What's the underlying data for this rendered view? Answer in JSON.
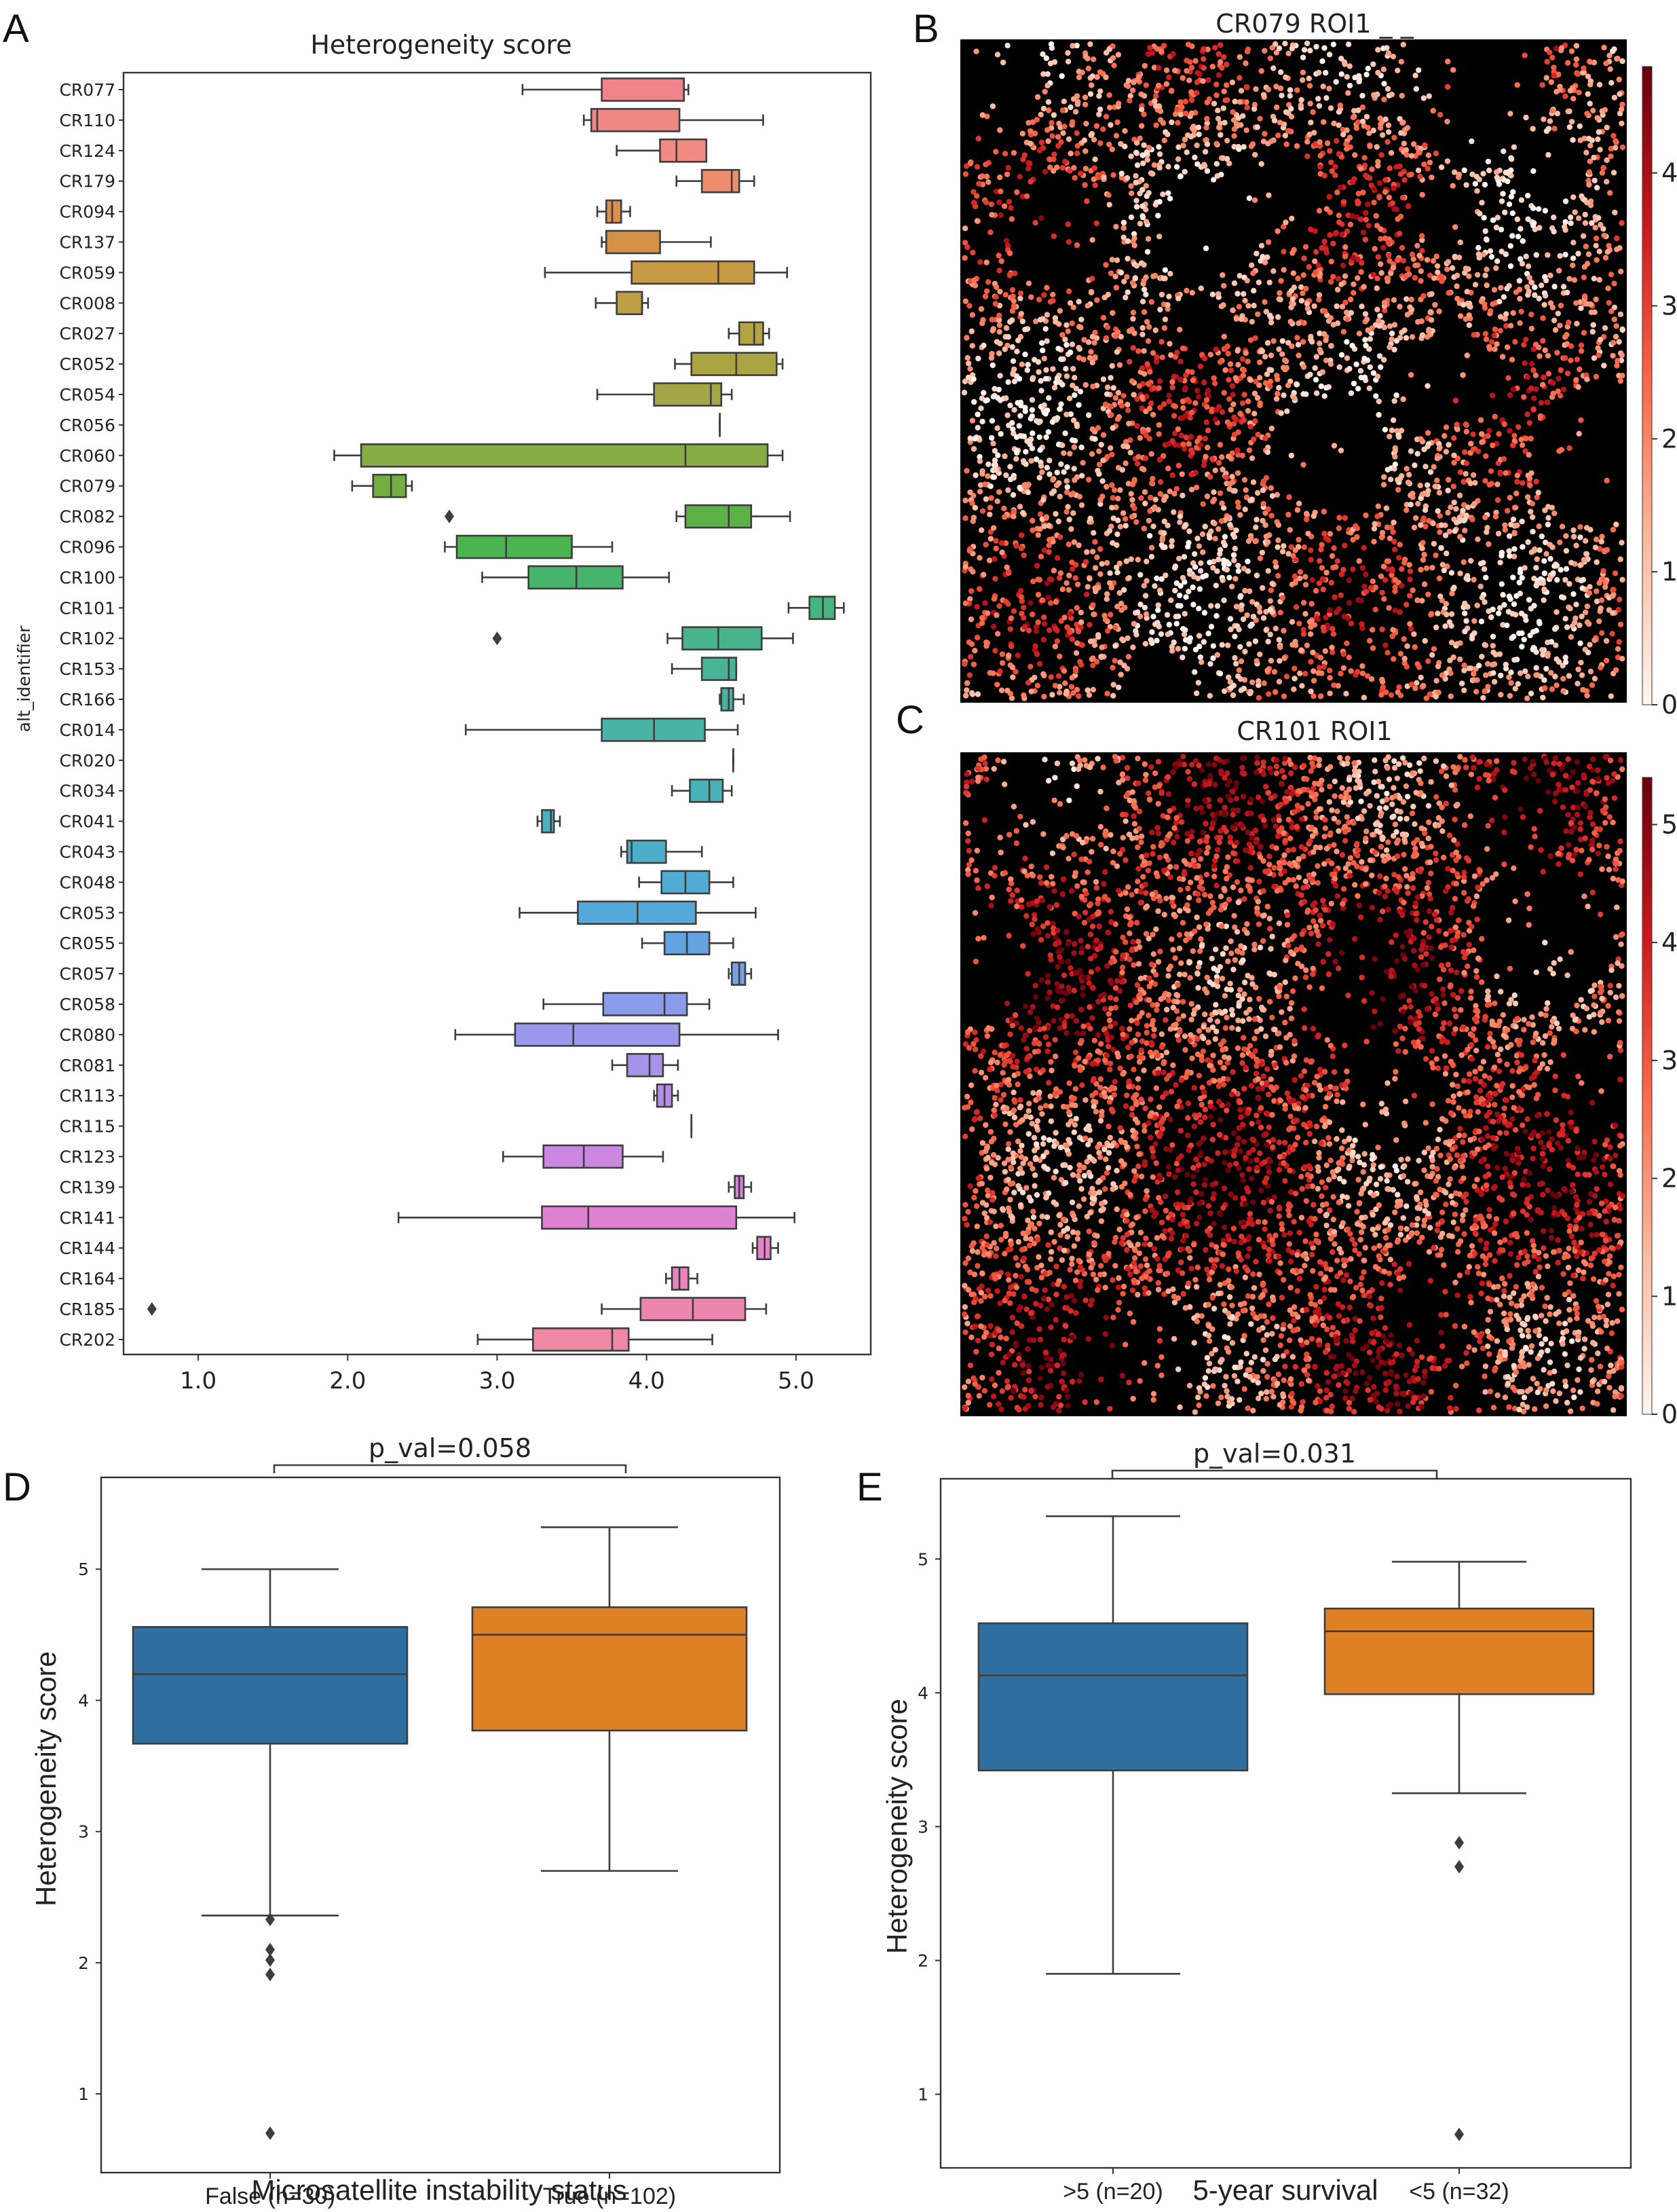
{
  "panels": {
    "A": {
      "letter": "A",
      "chart_data": {
        "type": "box-horizontal",
        "title": "Heterogeneity score",
        "ylabel": "alt_identifier",
        "xlim": [
          0.5,
          5.5
        ],
        "xticks": [
          "1.0",
          "2.0",
          "3.0",
          "4.0",
          "5.0"
        ],
        "xtick_values": [
          1,
          2,
          3,
          4,
          5
        ],
        "boxes": [
          {
            "label": "CR077",
            "color": "#f0848c",
            "min": 3.17,
            "q1": 3.7,
            "median": 4.25,
            "q3": 4.25,
            "max": 4.28,
            "outliers": []
          },
          {
            "label": "CR110",
            "color": "#f08886",
            "min": 3.58,
            "q1": 3.63,
            "median": 3.67,
            "q3": 4.22,
            "max": 4.78,
            "outliers": []
          },
          {
            "label": "CR124",
            "color": "#f08a82",
            "min": 3.8,
            "q1": 4.09,
            "median": 4.2,
            "q3": 4.4,
            "max": 4.4,
            "outliers": []
          },
          {
            "label": "CR179",
            "color": "#ee8c6e",
            "min": 4.2,
            "q1": 4.37,
            "median": 4.57,
            "q3": 4.62,
            "max": 4.72,
            "outliers": []
          },
          {
            "label": "CR094",
            "color": "#dc8f4d",
            "min": 3.67,
            "q1": 3.73,
            "median": 3.77,
            "q3": 3.83,
            "max": 3.89,
            "outliers": []
          },
          {
            "label": "CR137",
            "color": "#d49246",
            "min": 3.7,
            "q1": 3.73,
            "median": 3.73,
            "q3": 4.09,
            "max": 4.43,
            "outliers": []
          },
          {
            "label": "CR059",
            "color": "#c99a44",
            "min": 3.32,
            "q1": 3.9,
            "median": 4.48,
            "q3": 4.72,
            "max": 4.94,
            "outliers": []
          },
          {
            "label": "CR008",
            "color": "#bda043",
            "min": 3.66,
            "q1": 3.8,
            "median": 3.97,
            "q3": 3.97,
            "max": 4.01,
            "outliers": []
          },
          {
            "label": "CR027",
            "color": "#b3a344",
            "min": 4.55,
            "q1": 4.62,
            "median": 4.72,
            "q3": 4.78,
            "max": 4.82,
            "outliers": []
          },
          {
            "label": "CR052",
            "color": "#aca444",
            "min": 4.19,
            "q1": 4.3,
            "median": 4.6,
            "q3": 4.87,
            "max": 4.91,
            "outliers": []
          },
          {
            "label": "CR054",
            "color": "#a3a646",
            "min": 3.67,
            "q1": 4.05,
            "median": 4.43,
            "q3": 4.5,
            "max": 4.57,
            "outliers": []
          },
          {
            "label": "CR056",
            "color": "#9aa847",
            "min": 4.49,
            "q1": 4.49,
            "median": 4.49,
            "q3": 4.49,
            "max": 4.49,
            "outliers": []
          },
          {
            "label": "CR060",
            "color": "#86ac43",
            "min": 1.91,
            "q1": 2.09,
            "median": 4.26,
            "q3": 4.81,
            "max": 4.91,
            "outliers": []
          },
          {
            "label": "CR079",
            "color": "#74ae43",
            "min": 2.03,
            "q1": 2.17,
            "median": 2.29,
            "q3": 2.39,
            "max": 2.43,
            "outliers": []
          },
          {
            "label": "CR082",
            "color": "#5cb246",
            "min": 4.2,
            "q1": 4.26,
            "median": 4.55,
            "q3": 4.7,
            "max": 4.96,
            "outliers": [
              2.68
            ]
          },
          {
            "label": "CR096",
            "color": "#4bb34f",
            "min": 2.65,
            "q1": 2.73,
            "median": 3.06,
            "q3": 3.5,
            "max": 3.77,
            "outliers": []
          },
          {
            "label": "CR100",
            "color": "#48b36a",
            "min": 2.9,
            "q1": 3.21,
            "median": 3.53,
            "q3": 3.84,
            "max": 4.15,
            "outliers": []
          },
          {
            "label": "CR101",
            "color": "#47b47f",
            "min": 4.95,
            "q1": 5.09,
            "median": 5.18,
            "q3": 5.26,
            "max": 5.32,
            "outliers": []
          },
          {
            "label": "CR102",
            "color": "#48b48c",
            "min": 4.14,
            "q1": 4.24,
            "median": 4.48,
            "q3": 4.77,
            "max": 4.98,
            "outliers": [
              3.0
            ]
          },
          {
            "label": "CR153",
            "color": "#48b495",
            "min": 4.17,
            "q1": 4.37,
            "median": 4.55,
            "q3": 4.6,
            "max": 4.6,
            "outliers": []
          },
          {
            "label": "CR166",
            "color": "#48b49e",
            "min": 4.49,
            "q1": 4.5,
            "median": 4.55,
            "q3": 4.58,
            "max": 4.65,
            "outliers": []
          },
          {
            "label": "CR014",
            "color": "#49b3a8",
            "min": 2.79,
            "q1": 3.7,
            "median": 4.05,
            "q3": 4.39,
            "max": 4.61,
            "outliers": []
          },
          {
            "label": "CR020",
            "color": "#4ab3b1",
            "min": 4.58,
            "q1": 4.58,
            "median": 4.58,
            "q3": 4.58,
            "max": 4.58,
            "outliers": []
          },
          {
            "label": "CR034",
            "color": "#49b2b8",
            "min": 4.17,
            "q1": 4.29,
            "median": 4.42,
            "q3": 4.51,
            "max": 4.57,
            "outliers": []
          },
          {
            "label": "CR041",
            "color": "#4bb0c0",
            "min": 3.27,
            "q1": 3.3,
            "median": 3.36,
            "q3": 3.38,
            "max": 3.42,
            "outliers": []
          },
          {
            "label": "CR043",
            "color": "#4daec9",
            "min": 3.83,
            "q1": 3.87,
            "median": 3.9,
            "q3": 4.13,
            "max": 4.37,
            "outliers": []
          },
          {
            "label": "CR048",
            "color": "#50acd2",
            "min": 3.95,
            "q1": 4.1,
            "median": 4.26,
            "q3": 4.42,
            "max": 4.58,
            "outliers": []
          },
          {
            "label": "CR053",
            "color": "#55a8da",
            "min": 3.15,
            "q1": 3.54,
            "median": 3.94,
            "q3": 4.33,
            "max": 4.73,
            "outliers": []
          },
          {
            "label": "CR055",
            "color": "#62a4e0",
            "min": 3.97,
            "q1": 4.12,
            "median": 4.27,
            "q3": 4.42,
            "max": 4.58,
            "outliers": []
          },
          {
            "label": "CR057",
            "color": "#769fe6",
            "min": 4.55,
            "q1": 4.57,
            "median": 4.62,
            "q3": 4.66,
            "max": 4.7,
            "outliers": []
          },
          {
            "label": "CR058",
            "color": "#8a9ce9",
            "min": 3.31,
            "q1": 3.71,
            "median": 4.12,
            "q3": 4.27,
            "max": 4.42,
            "outliers": []
          },
          {
            "label": "CR080",
            "color": "#9b97ec",
            "min": 2.72,
            "q1": 3.12,
            "median": 3.51,
            "q3": 4.22,
            "max": 4.88,
            "outliers": []
          },
          {
            "label": "CR081",
            "color": "#a992ec",
            "min": 3.77,
            "q1": 3.87,
            "median": 4.02,
            "q3": 4.11,
            "max": 4.21,
            "outliers": []
          },
          {
            "label": "CR113",
            "color": "#b58eea",
            "min": 4.05,
            "q1": 4.07,
            "median": 4.12,
            "q3": 4.17,
            "max": 4.21,
            "outliers": []
          },
          {
            "label": "CR115",
            "color": "#c08ae6",
            "min": 4.3,
            "q1": 4.3,
            "median": 4.3,
            "q3": 4.3,
            "max": 4.3,
            "outliers": []
          },
          {
            "label": "CR123",
            "color": "#cb87e2",
            "min": 3.04,
            "q1": 3.31,
            "median": 3.58,
            "q3": 3.84,
            "max": 4.11,
            "outliers": []
          },
          {
            "label": "CR139",
            "color": "#d684dc",
            "min": 4.55,
            "q1": 4.59,
            "median": 4.62,
            "q3": 4.65,
            "max": 4.7,
            "outliers": []
          },
          {
            "label": "CR141",
            "color": "#df82d3",
            "min": 2.34,
            "q1": 3.3,
            "median": 3.61,
            "q3": 4.6,
            "max": 4.99,
            "outliers": []
          },
          {
            "label": "CR144",
            "color": "#e582c8",
            "min": 4.71,
            "q1": 4.74,
            "median": 4.79,
            "q3": 4.83,
            "max": 4.88,
            "outliers": []
          },
          {
            "label": "CR164",
            "color": "#e984bc",
            "min": 4.13,
            "q1": 4.17,
            "median": 4.22,
            "q3": 4.28,
            "max": 4.34,
            "outliers": []
          },
          {
            "label": "CR185",
            "color": "#ec86ae",
            "min": 3.7,
            "q1": 3.96,
            "median": 4.31,
            "q3": 4.66,
            "max": 4.8,
            "outliers": [
              0.69
            ]
          },
          {
            "label": "CR202",
            "color": "#ee88a4",
            "min": 2.87,
            "q1": 3.24,
            "median": 3.77,
            "q3": 3.88,
            "max": 4.44,
            "outliers": []
          }
        ]
      }
    },
    "B": {
      "letter": "B",
      "title": "CR079 ROI1 _ _",
      "chart_data": {
        "type": "scatter-spatial",
        "colorbar_range": [
          0,
          4.8
        ],
        "colorbar_ticks": [
          "0",
          "1",
          "2",
          "3",
          "4"
        ],
        "colorbar_tick_values": [
          0,
          1,
          2,
          3,
          4
        ],
        "background": "#000000"
      }
    },
    "C": {
      "letter": "C",
      "title": "CR101 ROI1",
      "chart_data": {
        "type": "scatter-spatial",
        "colorbar_range": [
          0,
          5.4
        ],
        "colorbar_ticks": [
          "0",
          "1",
          "2",
          "3",
          "4",
          "5"
        ],
        "colorbar_tick_values": [
          0,
          1,
          2,
          3,
          4,
          5
        ],
        "background": "#000000"
      }
    },
    "D": {
      "letter": "D",
      "pval_label": "p_val=0.058",
      "chart_data": {
        "type": "box",
        "ylabel": "Heterogeneity score",
        "xlabel": "Microsatellite instability status",
        "ylim": [
          0.4,
          5.7
        ],
        "yticks": [
          "1",
          "2",
          "3",
          "4",
          "5"
        ],
        "ytick_values": [
          1,
          2,
          3,
          4,
          5
        ],
        "boxes": [
          {
            "label": "False (n=30)",
            "color": "#2f6f9f",
            "min": 2.36,
            "q1": 3.67,
            "median": 4.2,
            "q3": 4.56,
            "max": 5.0,
            "outliers": [
              2.33,
              2.1,
              2.02,
              1.91,
              0.7
            ]
          },
          {
            "label": "True (n=102)",
            "color": "#e08025",
            "min": 2.7,
            "q1": 3.77,
            "median": 4.5,
            "q3": 4.71,
            "max": 5.32,
            "outliers": []
          }
        ]
      }
    },
    "E": {
      "letter": "E",
      "pval_label": "p_val=0.031",
      "chart_data": {
        "type": "box",
        "ylabel": "Heterogeneity score",
        "xlabel": "5-year survival",
        "ylim": [
          0.45,
          5.6
        ],
        "yticks": [
          "1",
          "2",
          "3",
          "4",
          "5"
        ],
        "ytick_values": [
          1,
          2,
          3,
          4,
          5
        ],
        "boxes": [
          {
            "label": ">5 (n=20)",
            "color": "#2f6f9f",
            "min": 1.9,
            "q1": 3.42,
            "median": 4.13,
            "q3": 4.52,
            "max": 5.32,
            "outliers": []
          },
          {
            "label": "<5 (n=32)",
            "color": "#e08025",
            "min": 3.25,
            "q1": 3.99,
            "median": 4.46,
            "q3": 4.63,
            "max": 4.98,
            "outliers": [
              2.88,
              2.7,
              0.7
            ]
          }
        ]
      }
    }
  }
}
